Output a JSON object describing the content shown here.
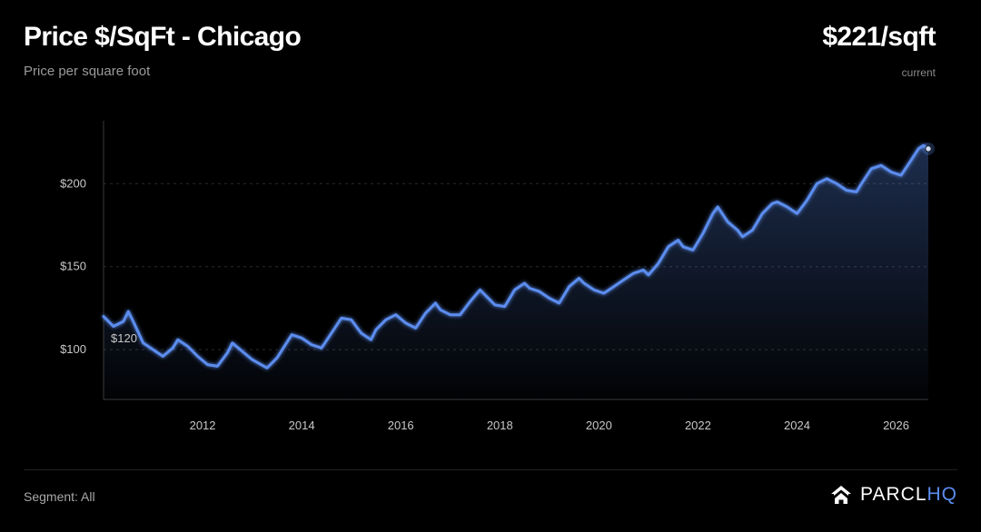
{
  "header": {
    "title": "Price $/SqFt - Chicago",
    "subtitle": "Price per square foot",
    "current_value": "$221/sqft",
    "current_label": "current"
  },
  "footer": {
    "segment": "Segment: All",
    "brand_name": "PARCL",
    "brand_suffix": "HQ",
    "brand_icon": "house-icon"
  },
  "colors": {
    "line": "#5b8def",
    "background": "#000000",
    "brand_accent": "#5b8def"
  },
  "chart_data": {
    "type": "area",
    "title": "Price $/SqFt - Chicago",
    "subtitle": "Price per square foot",
    "xlabel": "",
    "ylabel": "",
    "x_ticks": [
      "2012",
      "2014",
      "2016",
      "2018",
      "2020",
      "2022",
      "2024",
      "2026"
    ],
    "y_ticks": [
      {
        "value": 100,
        "label": "$100"
      },
      {
        "value": 150,
        "label": "$150"
      },
      {
        "value": 200,
        "label": "$200"
      }
    ],
    "xlim": [
      2010.0,
      2026.65
    ],
    "ylim": [
      70,
      245
    ],
    "grid": "horizontal dashed",
    "start_annotation": "$120",
    "end_value": 221,
    "series": [
      {
        "points": [
          [
            2010.0,
            120
          ],
          [
            2010.2,
            114
          ],
          [
            2010.4,
            117
          ],
          [
            2010.5,
            123
          ],
          [
            2010.6,
            117
          ],
          [
            2010.8,
            104
          ],
          [
            2011.0,
            100
          ],
          [
            2011.2,
            96
          ],
          [
            2011.4,
            101
          ],
          [
            2011.5,
            106
          ],
          [
            2011.7,
            102
          ],
          [
            2011.9,
            96
          ],
          [
            2012.1,
            91
          ],
          [
            2012.3,
            90
          ],
          [
            2012.5,
            98
          ],
          [
            2012.6,
            104
          ],
          [
            2012.8,
            99
          ],
          [
            2013.0,
            94
          ],
          [
            2013.3,
            89
          ],
          [
            2013.5,
            95
          ],
          [
            2013.8,
            109
          ],
          [
            2014.0,
            107
          ],
          [
            2014.2,
            103
          ],
          [
            2014.4,
            101
          ],
          [
            2014.6,
            110
          ],
          [
            2014.8,
            119
          ],
          [
            2015.0,
            118
          ],
          [
            2015.2,
            110
          ],
          [
            2015.4,
            106
          ],
          [
            2015.5,
            112
          ],
          [
            2015.7,
            118
          ],
          [
            2015.9,
            121
          ],
          [
            2016.1,
            116
          ],
          [
            2016.3,
            113
          ],
          [
            2016.5,
            122
          ],
          [
            2016.7,
            128
          ],
          [
            2016.8,
            124
          ],
          [
            2017.0,
            121
          ],
          [
            2017.2,
            121
          ],
          [
            2017.4,
            129
          ],
          [
            2017.6,
            136
          ],
          [
            2017.7,
            133
          ],
          [
            2017.9,
            127
          ],
          [
            2018.1,
            126
          ],
          [
            2018.3,
            136
          ],
          [
            2018.5,
            140
          ],
          [
            2018.6,
            137
          ],
          [
            2018.8,
            135
          ],
          [
            2019.0,
            131
          ],
          [
            2019.2,
            128
          ],
          [
            2019.4,
            138
          ],
          [
            2019.6,
            143
          ],
          [
            2019.7,
            140
          ],
          [
            2019.9,
            136
          ],
          [
            2020.1,
            134
          ],
          [
            2020.3,
            138
          ],
          [
            2020.5,
            142
          ],
          [
            2020.7,
            146
          ],
          [
            2020.9,
            148
          ],
          [
            2021.0,
            145
          ],
          [
            2021.2,
            152
          ],
          [
            2021.4,
            162
          ],
          [
            2021.6,
            166
          ],
          [
            2021.7,
            162
          ],
          [
            2021.9,
            160
          ],
          [
            2022.1,
            170
          ],
          [
            2022.3,
            182
          ],
          [
            2022.4,
            186
          ],
          [
            2022.6,
            177
          ],
          [
            2022.8,
            172
          ],
          [
            2022.9,
            168
          ],
          [
            2023.1,
            172
          ],
          [
            2023.3,
            182
          ],
          [
            2023.5,
            188
          ],
          [
            2023.6,
            189
          ],
          [
            2023.8,
            186
          ],
          [
            2024.0,
            182
          ],
          [
            2024.2,
            190
          ],
          [
            2024.4,
            200
          ],
          [
            2024.6,
            203
          ],
          [
            2024.8,
            200
          ],
          [
            2025.0,
            196
          ],
          [
            2025.2,
            195
          ],
          [
            2025.3,
            200
          ],
          [
            2025.5,
            209
          ],
          [
            2025.7,
            211
          ],
          [
            2025.9,
            207
          ],
          [
            2026.1,
            205
          ],
          [
            2026.3,
            214
          ],
          [
            2026.45,
            221
          ],
          [
            2026.55,
            223
          ],
          [
            2026.65,
            221
          ]
        ]
      }
    ]
  }
}
